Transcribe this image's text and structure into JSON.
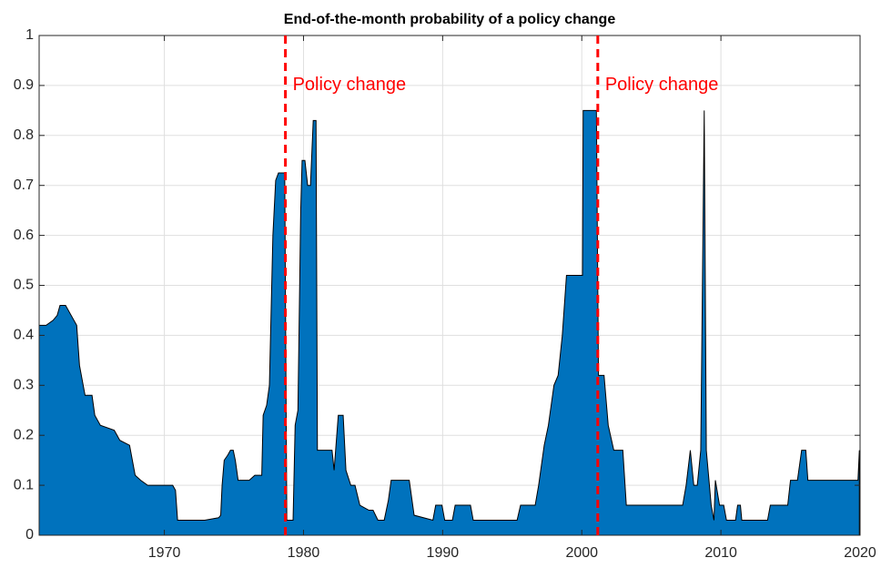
{
  "chart_data": {
    "type": "area",
    "title": "End-of-the-month probability of a policy change",
    "color": "#0072bd",
    "edge_color": "#000000",
    "grid": true,
    "xlim": [
      1961,
      2020
    ],
    "xticks": [
      1970,
      1980,
      1990,
      2000,
      2010,
      2020
    ],
    "ylim": [
      0,
      1
    ],
    "yticks": [
      0,
      0.1,
      0.2,
      0.3,
      0.4,
      0.5,
      0.6,
      0.7,
      0.8,
      0.9,
      1
    ],
    "x": [
      1961,
      1961.5,
      1962,
      1962.3,
      1962.5,
      1962.9,
      1963.3,
      1963.7,
      1963.9,
      1964.3,
      1964.8,
      1965,
      1965.4,
      1966.4,
      1966.8,
      1967.5,
      1967.9,
      1968.3,
      1968.8,
      1970.6,
      1970.8,
      1970.95,
      1972.9,
      1973.9,
      1974.05,
      1974.15,
      1974.3,
      1974.55,
      1974.75,
      1974.95,
      1975.1,
      1975.3,
      1976.1,
      1976.5,
      1977,
      1977.1,
      1977.35,
      1977.55,
      1977.8,
      1978,
      1978.2,
      1978.65,
      1978.8,
      1979.25,
      1979.4,
      1979.6,
      1979.8,
      1979.9,
      1980.1,
      1980.3,
      1980.5,
      1980.7,
      1980.9,
      1981,
      1982.05,
      1982.2,
      1982.5,
      1982.85,
      1983.05,
      1983.4,
      1983.7,
      1984.05,
      1984.7,
      1985,
      1985.35,
      1985.8,
      1986.1,
      1986.3,
      1987.6,
      1987.95,
      1989.3,
      1989.5,
      1989.95,
      1990.15,
      1990.7,
      1990.9,
      1992,
      1992.2,
      1995.35,
      1995.6,
      1996.65,
      1996.9,
      1997.3,
      1997.6,
      1998,
      1998.3,
      1998.6,
      1998.9,
      2000.05,
      2000.1,
      2001.05,
      2001.2,
      2001.6,
      2001.9,
      2002.3,
      2002.95,
      2003.2,
      2007.25,
      2007.5,
      2007.8,
      2008.05,
      2008.3,
      2008.55,
      2008.8,
      2008.95,
      2009.3,
      2009.5,
      2009.6,
      2009.9,
      2010.2,
      2010.4,
      2011.05,
      2011.2,
      2011.4,
      2011.5,
      2013.35,
      2013.55,
      2014.8,
      2015,
      2015.5,
      2015.8,
      2016.1,
      2016.25,
      2019.85,
      2019.95
    ],
    "values": [
      0.42,
      0.42,
      0.43,
      0.44,
      0.46,
      0.46,
      0.44,
      0.42,
      0.34,
      0.28,
      0.28,
      0.24,
      0.22,
      0.21,
      0.19,
      0.18,
      0.12,
      0.11,
      0.1,
      0.1,
      0.09,
      0.03,
      0.03,
      0.035,
      0.04,
      0.1,
      0.15,
      0.16,
      0.17,
      0.17,
      0.15,
      0.11,
      0.11,
      0.12,
      0.12,
      0.24,
      0.26,
      0.3,
      0.6,
      0.71,
      0.725,
      0.725,
      0.03,
      0.03,
      0.22,
      0.25,
      0.65,
      0.75,
      0.75,
      0.7,
      0.7,
      0.83,
      0.83,
      0.17,
      0.17,
      0.13,
      0.24,
      0.24,
      0.13,
      0.1,
      0.1,
      0.06,
      0.05,
      0.05,
      0.03,
      0.03,
      0.07,
      0.11,
      0.11,
      0.04,
      0.03,
      0.06,
      0.06,
      0.03,
      0.03,
      0.06,
      0.06,
      0.03,
      0.03,
      0.06,
      0.06,
      0.1,
      0.18,
      0.22,
      0.3,
      0.32,
      0.4,
      0.52,
      0.52,
      0.85,
      0.85,
      0.32,
      0.32,
      0.22,
      0.17,
      0.17,
      0.06,
      0.06,
      0.1,
      0.17,
      0.1,
      0.1,
      0.17,
      0.85,
      0.17,
      0.06,
      0.03,
      0.11,
      0.06,
      0.06,
      0.03,
      0.03,
      0.06,
      0.06,
      0.03,
      0.03,
      0.06,
      0.06,
      0.11,
      0.11,
      0.17,
      0.17,
      0.11,
      0.11,
      0.17
    ],
    "annotations": [
      {
        "text": "Policy change",
        "x": 1978.7,
        "y": 0.9,
        "color": "#ff0000"
      },
      {
        "text": "Policy change",
        "x": 2001.15,
        "y": 0.9,
        "color": "#ff0000"
      }
    ]
  }
}
